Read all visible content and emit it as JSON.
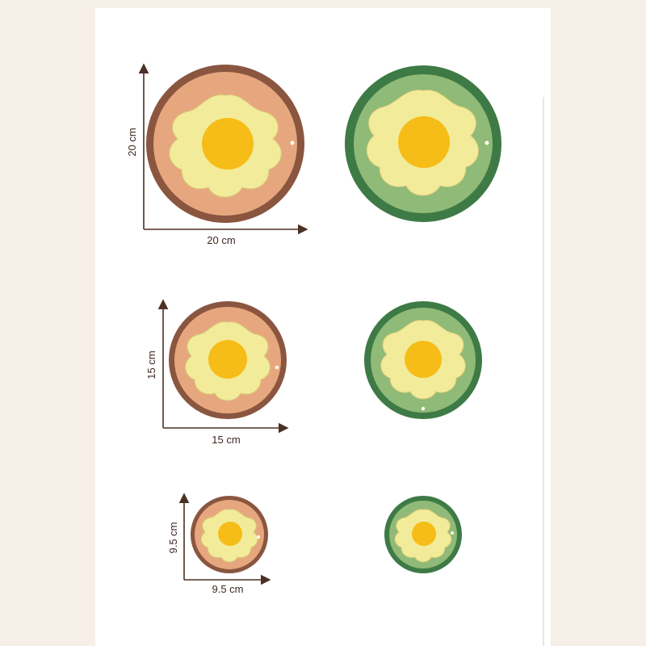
{
  "colors": {
    "brown_rim": "#8a5640",
    "brown_face": "#e7a77e",
    "green_rim": "#3e7a45",
    "green_face": "#8fba77",
    "egg_white": "#f2ec9a",
    "egg_yolk": "#f6bd18",
    "arrow": "#4b3024"
  },
  "icons": [
    "fried-egg-coaster-brown",
    "fried-egg-coaster-green"
  ],
  "coasters": {
    "large": {
      "width_label": "20 cm",
      "height_label": "20 cm"
    },
    "medium": {
      "width_label": "15 cm",
      "height_label": "15 cm"
    },
    "small": {
      "width_label": "9.5 cm",
      "height_label": "9.5 cm"
    }
  }
}
